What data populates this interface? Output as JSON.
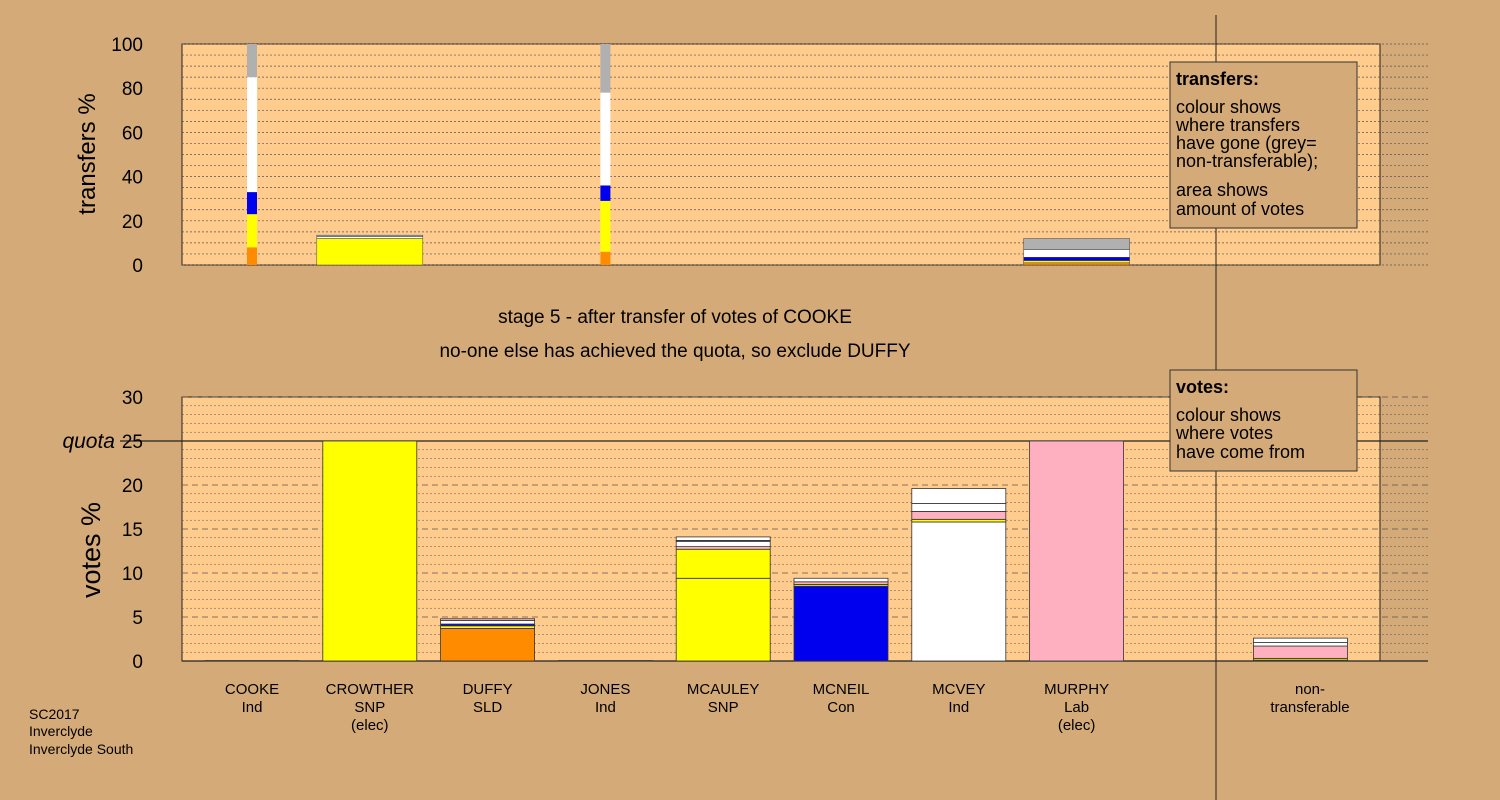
{
  "colors": {
    "background": "#d4aa78",
    "plot_bg": "#ffcc8e",
    "SNP": "#ffff00",
    "SLD": "#ff8c00",
    "Con": "#0000ee",
    "Ind": "#ffffff",
    "Lab": "#ffb0c0",
    "non_transferable": "#b0b0b0"
  },
  "stage_text": {
    "line1": "stage 5 - after transfer of votes of COOKE",
    "line2": "no-one else has achieved the quota, so exclude DUFFY"
  },
  "footer": [
    "SC2017",
    "Inverclyde",
    "Inverclyde South"
  ],
  "legend_transfers": {
    "title": "transfers:",
    "lines": [
      "colour shows",
      "where transfers",
      "have gone (grey=",
      "non-transferable);",
      "area shows",
      "amount of votes"
    ]
  },
  "legend_votes": {
    "title": "votes:",
    "lines": [
      "colour shows",
      "where votes",
      "have come from"
    ]
  },
  "chart_data": [
    {
      "type": "bar",
      "name": "transfers",
      "ylabel": "transfers %",
      "ylim": [
        0,
        100
      ],
      "yticks": [
        0,
        20,
        40,
        60,
        80,
        100
      ],
      "bars": [
        {
          "pos": 0,
          "wide": false,
          "segments": [
            {
              "party": "SLD",
              "value": 8
            },
            {
              "party": "SNP",
              "value": 15
            },
            {
              "party": "Con",
              "value": 10
            },
            {
              "party": "Ind",
              "value": 52
            },
            {
              "party": "non_transferable",
              "value": 15
            }
          ]
        },
        {
          "pos": 1,
          "wide": true,
          "segments": [
            {
              "party": "SNP",
              "value": 12
            },
            {
              "party": "Ind",
              "value": 0.8
            },
            {
              "party": "non_transferable",
              "value": 0.7
            }
          ]
        },
        {
          "pos": 3,
          "wide": false,
          "segments": [
            {
              "party": "SLD",
              "value": 6
            },
            {
              "party": "SNP",
              "value": 23
            },
            {
              "party": "Con",
              "value": 7
            },
            {
              "party": "Ind",
              "value": 42
            },
            {
              "party": "non_transferable",
              "value": 22
            }
          ]
        },
        {
          "pos": 7,
          "wide": true,
          "segments": [
            {
              "party": "SLD",
              "value": 1
            },
            {
              "party": "SNP",
              "value": 1
            },
            {
              "party": "Con",
              "value": 1.5
            },
            {
              "party": "Ind",
              "value": 3.5
            },
            {
              "party": "non_transferable",
              "value": 5
            }
          ]
        }
      ]
    },
    {
      "type": "bar",
      "name": "votes",
      "ylabel": "votes %",
      "ylim": [
        0,
        30
      ],
      "yticks": [
        0,
        5,
        10,
        15,
        20,
        25,
        30
      ],
      "quota": 25,
      "quota_label": "quota",
      "categories": [
        {
          "name": "COOKE",
          "party": "Ind",
          "note": ""
        },
        {
          "name": "CROWTHER",
          "party": "SNP",
          "note": "(elec)"
        },
        {
          "name": "DUFFY",
          "party": "SLD",
          "note": ""
        },
        {
          "name": "JONES",
          "party": "Ind",
          "note": ""
        },
        {
          "name": "MCAULEY",
          "party": "SNP",
          "note": ""
        },
        {
          "name": "MCNEIL",
          "party": "Con",
          "note": ""
        },
        {
          "name": "MCVEY",
          "party": "Ind",
          "note": ""
        },
        {
          "name": "MURPHY",
          "party": "Lab",
          "note": "(elec)"
        },
        {
          "name": "non-",
          "party": "transferable",
          "note": ""
        }
      ],
      "bars": [
        {
          "pos": 0,
          "segments": [
            {
              "party": "Ind",
              "value": 0.05
            }
          ]
        },
        {
          "pos": 1,
          "segments": [
            {
              "party": "SNP",
              "value": 25
            }
          ]
        },
        {
          "pos": 2,
          "segments": [
            {
              "party": "SLD",
              "value": 3.7
            },
            {
              "party": "SNP",
              "value": 0.3
            },
            {
              "party": "Con",
              "value": 0.2
            },
            {
              "party": "Ind",
              "value": 0.4
            },
            {
              "party": "Lab",
              "value": 0.2
            }
          ]
        },
        {
          "pos": 3,
          "segments": [
            {
              "party": "Ind",
              "value": 0.05
            }
          ]
        },
        {
          "pos": 4,
          "segments": [
            {
              "party": "SNP",
              "value": 9.4
            },
            {
              "party": "SNP",
              "value": 3.3
            },
            {
              "party": "Lab",
              "value": 0.3
            },
            {
              "party": "Ind",
              "value": 0.6
            },
            {
              "party": "Con",
              "value": 0.1
            },
            {
              "party": "Ind",
              "value": 0.4
            }
          ]
        },
        {
          "pos": 5,
          "segments": [
            {
              "party": "Con",
              "value": 8.5
            },
            {
              "party": "SNP",
              "value": 0.2
            },
            {
              "party": "Lab",
              "value": 0.3
            },
            {
              "party": "Ind",
              "value": 0.4
            }
          ]
        },
        {
          "pos": 6,
          "segments": [
            {
              "party": "Ind",
              "value": 15.8
            },
            {
              "party": "SNP",
              "value": 0.3
            },
            {
              "party": "Lab",
              "value": 0.9
            },
            {
              "party": "Ind",
              "value": 0.9
            },
            {
              "party": "Ind",
              "value": 1.7
            }
          ]
        },
        {
          "pos": 7,
          "segments": [
            {
              "party": "Lab",
              "value": 25
            }
          ]
        },
        {
          "pos": 8.9,
          "segments": [
            {
              "party": "SLD",
              "value": 0.1
            },
            {
              "party": "SNP",
              "value": 0.2
            },
            {
              "party": "Lab",
              "value": 1.4
            },
            {
              "party": "Ind",
              "value": 0.4
            },
            {
              "party": "Ind",
              "value": 0.5
            }
          ]
        }
      ]
    }
  ]
}
